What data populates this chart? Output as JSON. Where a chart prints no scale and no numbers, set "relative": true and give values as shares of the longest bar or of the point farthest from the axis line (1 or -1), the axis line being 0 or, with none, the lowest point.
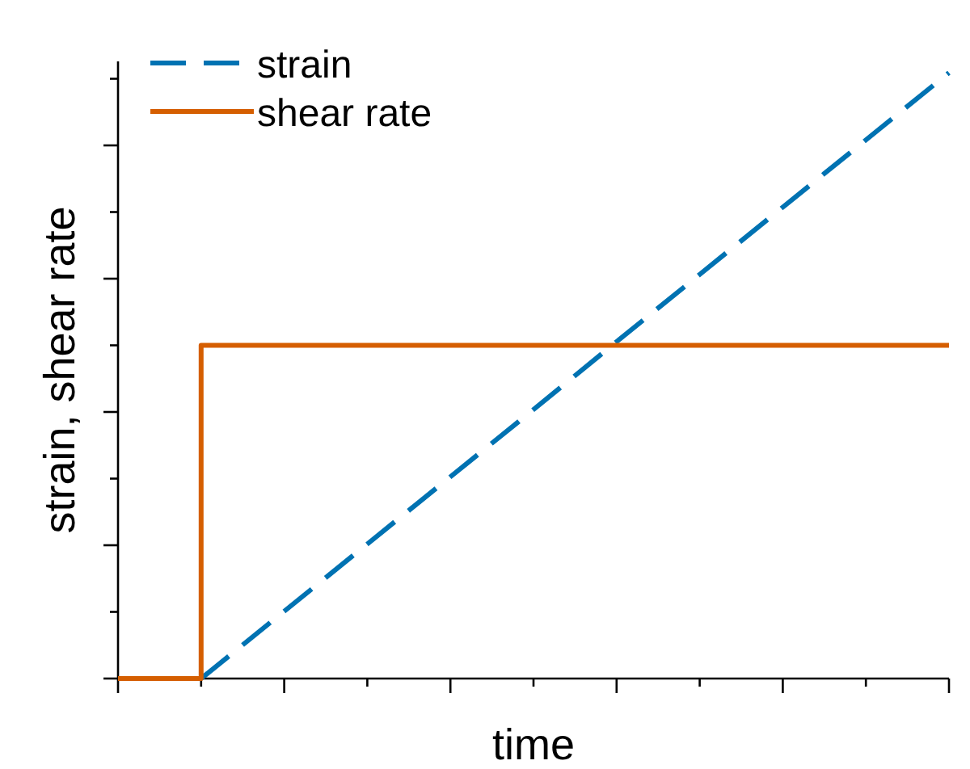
{
  "chart_data": {
    "type": "line",
    "relative": true,
    "xlabel": "time",
    "ylabel": "strain, shear rate",
    "legend": "top left",
    "categories": [
      null,
      null,
      null,
      null,
      null,
      null,
      null,
      null,
      null,
      null,
      null
    ],
    "series": [
      {
        "name": "strain",
        "color": "#0072b2",
        "line_style": "dashed",
        "values": [
          null,
          0,
          0.111,
          0.222,
          0.333,
          0.444,
          0.556,
          0.667,
          0.778,
          0.889,
          1
        ]
      },
      {
        "name": "shear rate",
        "type": "step",
        "color": "#d55e00",
        "line_style": "solid",
        "values": [
          0,
          0.55,
          0.55,
          0.55,
          0.55,
          0.55,
          0.55,
          0.55,
          0.55,
          0.55,
          0.55
        ]
      }
    ]
  }
}
